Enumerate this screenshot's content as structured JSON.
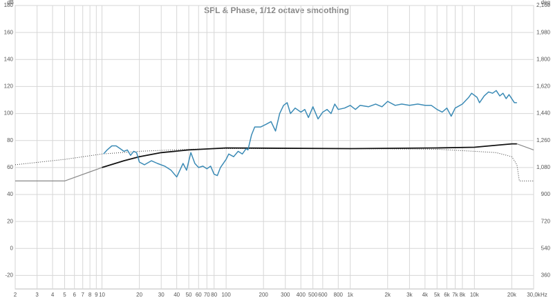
{
  "chart_data": {
    "type": "line",
    "title": "SPL & Phase, 1/12 octave smoothing",
    "y_unit": "dB",
    "y2_unit": "deg",
    "x_unit": "Hz",
    "log_x": true,
    "grid": true,
    "xlim": [
      2,
      30000
    ],
    "ylim": [
      -30,
      180
    ],
    "y2lim": [
      270,
      2160
    ],
    "yticks": [
      -20,
      0,
      20,
      40,
      60,
      80,
      100,
      120,
      140,
      160,
      180
    ],
    "y2ticks": [
      {
        "value": 360,
        "label": "360"
      },
      {
        "value": 540,
        "label": "540"
      },
      {
        "value": 720,
        "label": "720"
      },
      {
        "value": 900,
        "label": "900"
      },
      {
        "value": 1080,
        "label": "1,080"
      },
      {
        "value": 1260,
        "label": "1,260"
      },
      {
        "value": 1440,
        "label": "1,440"
      },
      {
        "value": 1620,
        "label": "1,620"
      },
      {
        "value": 1800,
        "label": "1,800"
      },
      {
        "value": 1980,
        "label": "1,980"
      },
      {
        "value": 2160,
        "label": "2,160"
      }
    ],
    "xticks": [
      2,
      3,
      4,
      5,
      6,
      7,
      8,
      9,
      10,
      20,
      30,
      40,
      50,
      60,
      70,
      80,
      100,
      200,
      300,
      400,
      500,
      600,
      800,
      {
        "value": 1000,
        "label": "1k"
      },
      {
        "value": 2000,
        "label": "2k"
      },
      {
        "value": 3000,
        "label": "3k"
      },
      {
        "value": 4000,
        "label": "4k"
      },
      {
        "value": 5000,
        "label": "5k"
      },
      {
        "value": 6000,
        "label": "6k"
      },
      {
        "value": 7000,
        "label": "7k"
      },
      {
        "value": 8000,
        "label": "8k"
      },
      {
        "value": 10000,
        "label": "10k"
      },
      {
        "value": 20000,
        "label": "20k"
      },
      {
        "value": 30000,
        "label": "30,0k"
      }
    ],
    "series": [
      {
        "color": "#888888",
        "width": 1.2,
        "style": "solid",
        "x": [
          2,
          5,
          10,
          21000,
          22000,
          30000
        ],
        "values": [
          50,
          50,
          60,
          null,
          77.5,
          73
        ]
      },
      {
        "color": "#333333",
        "width": 1,
        "style": "dotted",
        "x": [
          2,
          5,
          10,
          20,
          50,
          100,
          1000,
          5000,
          10000,
          15000,
          20000,
          22000,
          23000,
          24000,
          30000
        ],
        "values": [
          62,
          66,
          70,
          72,
          73.5,
          74,
          74,
          73.5,
          72,
          71,
          68,
          62,
          50,
          50,
          50
        ]
      },
      {
        "color": "#111111",
        "width": 1.8,
        "style": "solid",
        "x": [
          10,
          15,
          20,
          30,
          50,
          100,
          1000,
          5000,
          10000,
          15000,
          20000,
          22000
        ],
        "values": [
          60,
          65,
          68,
          71,
          73,
          74.5,
          74,
          74.5,
          75,
          76.5,
          77.5,
          77.5
        ]
      },
      {
        "color": "#3a8ab5",
        "width": 1.5,
        "style": "solid",
        "x": [
          10.3,
          11,
          12,
          13,
          14,
          15,
          16,
          17,
          18,
          19,
          20,
          22,
          25,
          28,
          32,
          36,
          40,
          45,
          48,
          52,
          56,
          60,
          65,
          70,
          75,
          80,
          85,
          90,
          100,
          105,
          115,
          125,
          135,
          145,
          150,
          160,
          170,
          190,
          210,
          230,
          250,
          270,
          290,
          310,
          330,
          360,
          400,
          430,
          460,
          500,
          550,
          600,
          650,
          700,
          750,
          800,
          900,
          1000,
          1100,
          1200,
          1400,
          1600,
          1800,
          2000,
          2300,
          2600,
          3000,
          3500,
          4000,
          4500,
          5000,
          5500,
          6000,
          6500,
          7000,
          8000,
          9000,
          9500,
          10500,
          11000,
          12000,
          13000,
          14000,
          15000,
          16000,
          17000,
          18000,
          19000,
          21000,
          22000
        ],
        "values": [
          70,
          73,
          76,
          76,
          74,
          72,
          73,
          69,
          72,
          71,
          64,
          62,
          65,
          63,
          61,
          58,
          53,
          63,
          58,
          71,
          63,
          60,
          61,
          59,
          61,
          55,
          54,
          60,
          66,
          70,
          68,
          72,
          70,
          74,
          73,
          84,
          90,
          90,
          92,
          94,
          87,
          100,
          106,
          108,
          100,
          104,
          101,
          103,
          97,
          105,
          96,
          101,
          103,
          100,
          107,
          103,
          104,
          106,
          103,
          106,
          105,
          107,
          105,
          109,
          106,
          107,
          106,
          107,
          106,
          106,
          103,
          101,
          104,
          98,
          104,
          107,
          112,
          115,
          112,
          108,
          113,
          116,
          115,
          117,
          113,
          115,
          111,
          114,
          108,
          108
        ]
      }
    ]
  }
}
